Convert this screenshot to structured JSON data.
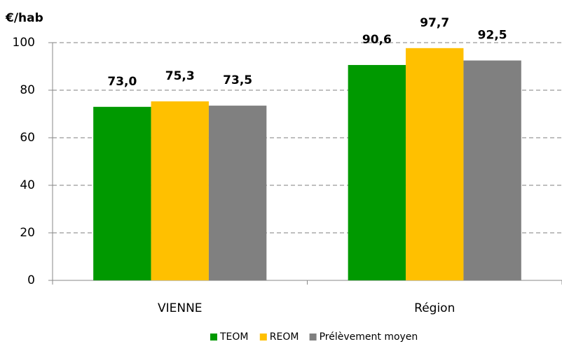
{
  "chart_data": {
    "type": "bar",
    "y_label": "€/hab",
    "categories": [
      "VIENNE",
      "Région"
    ],
    "series": [
      {
        "name": "TEOM",
        "color": "#009900",
        "values": [
          73.0,
          90.6
        ],
        "value_labels": [
          "73,0",
          "90,6"
        ]
      },
      {
        "name": "REOM",
        "color": "#ffc000",
        "values": [
          75.3,
          97.7
        ],
        "value_labels": [
          "75,3",
          "97,7"
        ]
      },
      {
        "name": "Prélèvement moyen",
        "color": "#808080",
        "values": [
          73.5,
          92.5
        ],
        "value_labels": [
          "73,5",
          "92,5"
        ]
      }
    ],
    "ylim": [
      0,
      100
    ],
    "yticks": [
      0,
      20,
      40,
      60,
      80,
      100
    ],
    "grid": true,
    "legend": "bottom"
  }
}
